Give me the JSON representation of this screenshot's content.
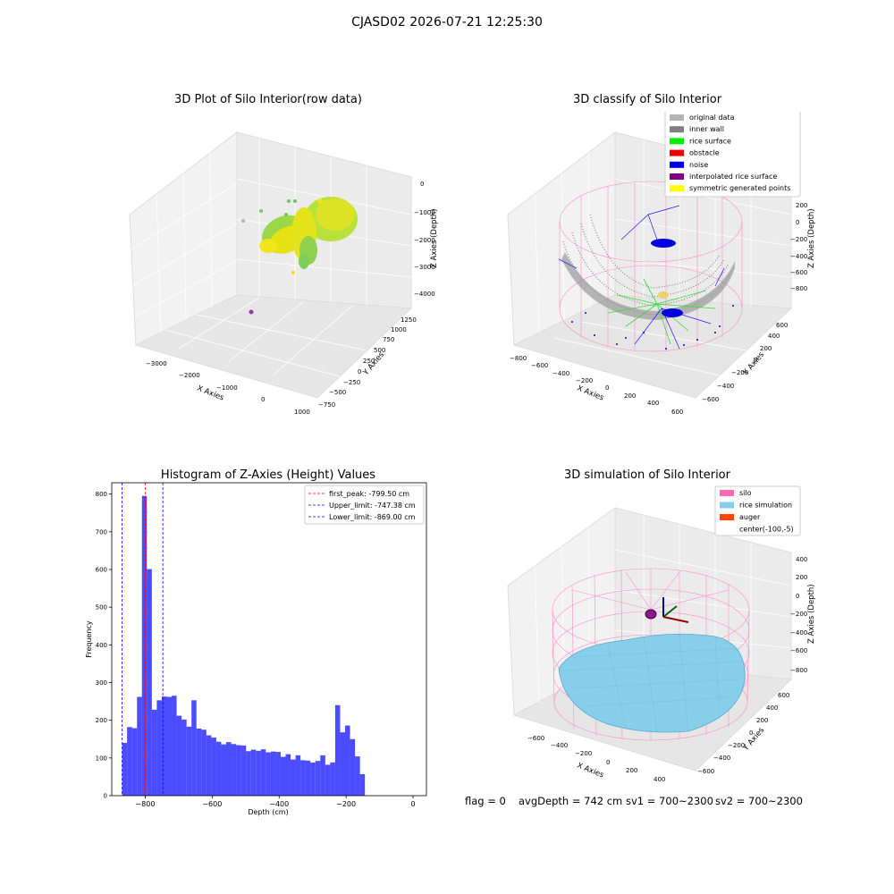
{
  "suptitle": "CJASD02 2026-07-21 12:25:30",
  "panels": {
    "p1": {
      "title": "3D Plot of Silo Interior(row data)",
      "xlabel": "X Axies",
      "ylabel": "Y Axies",
      "zlabel": "Z Axies (Depth)",
      "xticks": [
        "−3000",
        "−2000",
        "−1000",
        "0",
        "1000"
      ],
      "yticks": [
        "−750",
        "−500",
        "−250",
        "0",
        "250",
        "500",
        "750",
        "1000",
        "1250"
      ],
      "zticks": [
        "0",
        "−1000",
        "−2000",
        "−3000",
        "−4000"
      ]
    },
    "p2": {
      "title": "3D classify of Silo Interior",
      "xlabel": "X Axies",
      "ylabel": "Y Axies",
      "zlabel": "Z Axies (Depth)",
      "xticks": [
        "−800",
        "−600",
        "−400",
        "−200",
        "0",
        "200",
        "400",
        "600"
      ],
      "yticks": [
        "−600",
        "−400",
        "−200",
        "0",
        "200",
        "400",
        "600"
      ],
      "zticks": [
        "200",
        "0",
        "−200",
        "−400",
        "−600",
        "−800"
      ],
      "legend": [
        {
          "label": "original data",
          "color": "#b4b4b4"
        },
        {
          "label": "inner wall",
          "color": "#808080"
        },
        {
          "label": "rice surface",
          "color": "#00ee00"
        },
        {
          "label": "obstacle",
          "color": "#ee0000"
        },
        {
          "label": "noise",
          "color": "#0000ee"
        },
        {
          "label": "interpolated rice surface",
          "color": "#800080"
        },
        {
          "label": "symmetric generated points",
          "color": "#ffff00"
        }
      ]
    },
    "p4": {
      "title": "3D simulation of Silo Interior",
      "xlabel": "X Axies",
      "ylabel": "Y Axies",
      "zlabel": "Z Axies (Depth)",
      "xticks": [
        "−600",
        "−400",
        "−200",
        "0",
        "200",
        "400"
      ],
      "yticks": [
        "−600",
        "−400",
        "−200",
        "0",
        "200",
        "400",
        "600"
      ],
      "zticks": [
        "400",
        "200",
        "0",
        "−200",
        "−400",
        "−600",
        "−800"
      ],
      "legend": [
        {
          "label": "silo",
          "color": "#ff69b4"
        },
        {
          "label": "rice simulation",
          "color": "#87ceeb"
        },
        {
          "label": "auger",
          "color": "#ff4500"
        },
        {
          "label": "center(-100,-5)",
          "color": "none"
        }
      ]
    }
  },
  "chart_data": [
    {
      "type": "bar",
      "title": "Histogram of Z-Axies (Height) Values",
      "xlabel": "Depth (cm)",
      "ylabel": "Frequency",
      "xlim": [
        -900,
        40
      ],
      "ylim": [
        0,
        830
      ],
      "xticks": [
        -800,
        -600,
        -400,
        -200,
        0
      ],
      "yticks": [
        0,
        100,
        200,
        300,
        400,
        500,
        600,
        700,
        800
      ],
      "bar_color": "#0000ff",
      "bin_width": 14.8,
      "bin_start": -869,
      "values": [
        140,
        182,
        179,
        262,
        795,
        601,
        228,
        253,
        263,
        262,
        265,
        212,
        202,
        183,
        253,
        178,
        175,
        160,
        154,
        143,
        136,
        142,
        137,
        134,
        133,
        118,
        122,
        119,
        123,
        115,
        117,
        116,
        103,
        110,
        96,
        107,
        94,
        93,
        88,
        92,
        107,
        82,
        88,
        240,
        168,
        186,
        150,
        104,
        57
      ],
      "lines": [
        {
          "label": "first_peak: -799.50 cm",
          "x": -799.5,
          "color": "#ff0000"
        },
        {
          "label": "Upper_limit: -747.38 cm",
          "x": -747.38,
          "color": "#0000ff"
        },
        {
          "label": "Lower_limit: -869.00 cm",
          "x": -869.0,
          "color": "#0000ff"
        }
      ],
      "legend_position": "top-right"
    }
  ],
  "bottom": {
    "flag": "flag = 0",
    "avg": "avgDepth = 742 cm",
    "sv1": "sv1 = 700~2300",
    "sv2": "sv2 = 700~2300"
  }
}
